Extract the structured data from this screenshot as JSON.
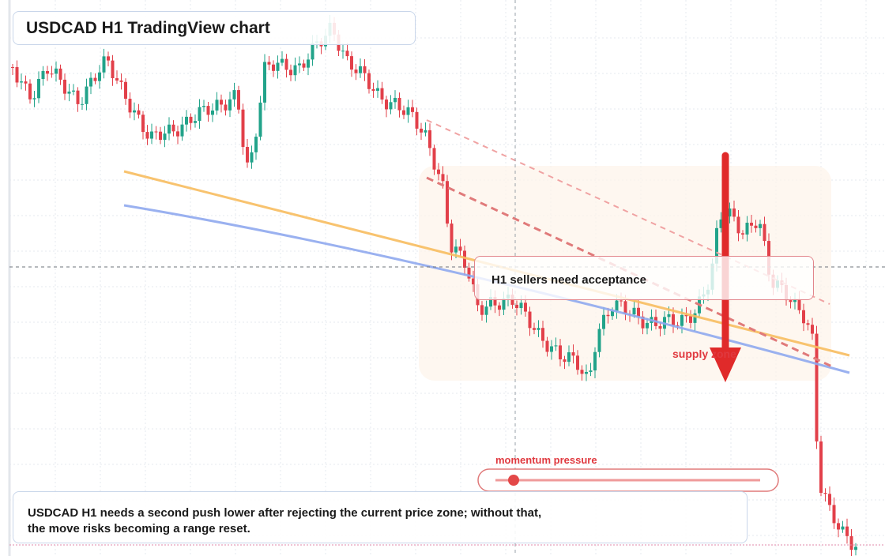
{
  "header": {
    "title": "USDCAD H1 TradingView chart"
  },
  "annotations": {
    "callout": "H1 sellers need acceptance",
    "zone": "supply zone",
    "meter": "momentum pressure"
  },
  "note": {
    "lines": [
      "USDCAD H1 needs a second push lower after rejecting the current price zone; without that,",
      "the move risks becoming a range reset."
    ]
  }
}
